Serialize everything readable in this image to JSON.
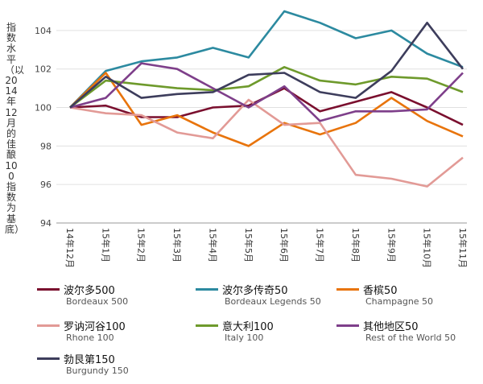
{
  "chart_data": {
    "type": "line",
    "ylabel": "指数水平（以2014年12月的佳酿100指数为基底）",
    "xlabel": "",
    "title": "",
    "ylim": [
      94,
      105
    ],
    "yticks": [
      94,
      96,
      98,
      100,
      102,
      104
    ],
    "grid": true,
    "legend_position": "bottom",
    "categories": [
      "14年12月",
      "15年1月",
      "15年2月",
      "15年3月",
      "15年4月",
      "15年5月",
      "15年6月",
      "15年7月",
      "15年8月",
      "15年9月",
      "15年10月",
      "15年11月"
    ],
    "series": [
      {
        "name": "波尔多500",
        "name_en": "Bordeaux 500",
        "color": "#7a0f2e",
        "values": [
          100.0,
          100.1,
          99.5,
          99.5,
          100.0,
          100.1,
          101.0,
          99.8,
          100.3,
          100.8,
          100.0,
          99.1
        ]
      },
      {
        "name": "波尔多传奇50",
        "name_en": "Bordeaux Legends 50",
        "color": "#2c8aa0",
        "values": [
          100.0,
          101.9,
          102.4,
          102.6,
          103.1,
          102.6,
          105.0,
          104.4,
          103.6,
          104.0,
          102.8,
          102.1
        ]
      },
      {
        "name": "香槟50",
        "name_en": "Champagne 50",
        "color": "#e8740c",
        "values": [
          100.0,
          101.8,
          99.1,
          99.6,
          98.7,
          98.0,
          99.2,
          98.6,
          99.2,
          100.5,
          99.3,
          98.5
        ]
      },
      {
        "name": "罗讷河谷100",
        "name_en": "Rhone 100",
        "color": "#e29a96",
        "values": [
          100.0,
          99.7,
          99.6,
          98.7,
          98.4,
          100.4,
          99.1,
          99.2,
          96.5,
          96.3,
          95.9,
          97.4
        ]
      },
      {
        "name": "意大利100",
        "name_en": "Italy 100",
        "color": "#6e9a2c",
        "values": [
          100.0,
          101.4,
          101.2,
          101.0,
          100.9,
          101.1,
          102.1,
          101.4,
          101.2,
          101.6,
          101.5,
          100.8
        ]
      },
      {
        "name": "其他地区50",
        "name_en": "Rest of the World 50",
        "color": "#7e3f8a",
        "values": [
          100.0,
          100.5,
          102.3,
          102.0,
          101.0,
          100.0,
          101.1,
          99.3,
          99.8,
          99.8,
          99.9,
          101.8
        ]
      },
      {
        "name": "勃艮第150",
        "name_en": "Burgundy 150",
        "color": "#3d3d5c",
        "values": [
          100.0,
          101.6,
          100.5,
          100.7,
          100.8,
          101.7,
          101.8,
          100.8,
          100.5,
          101.9,
          104.4,
          102.0
        ]
      }
    ]
  }
}
